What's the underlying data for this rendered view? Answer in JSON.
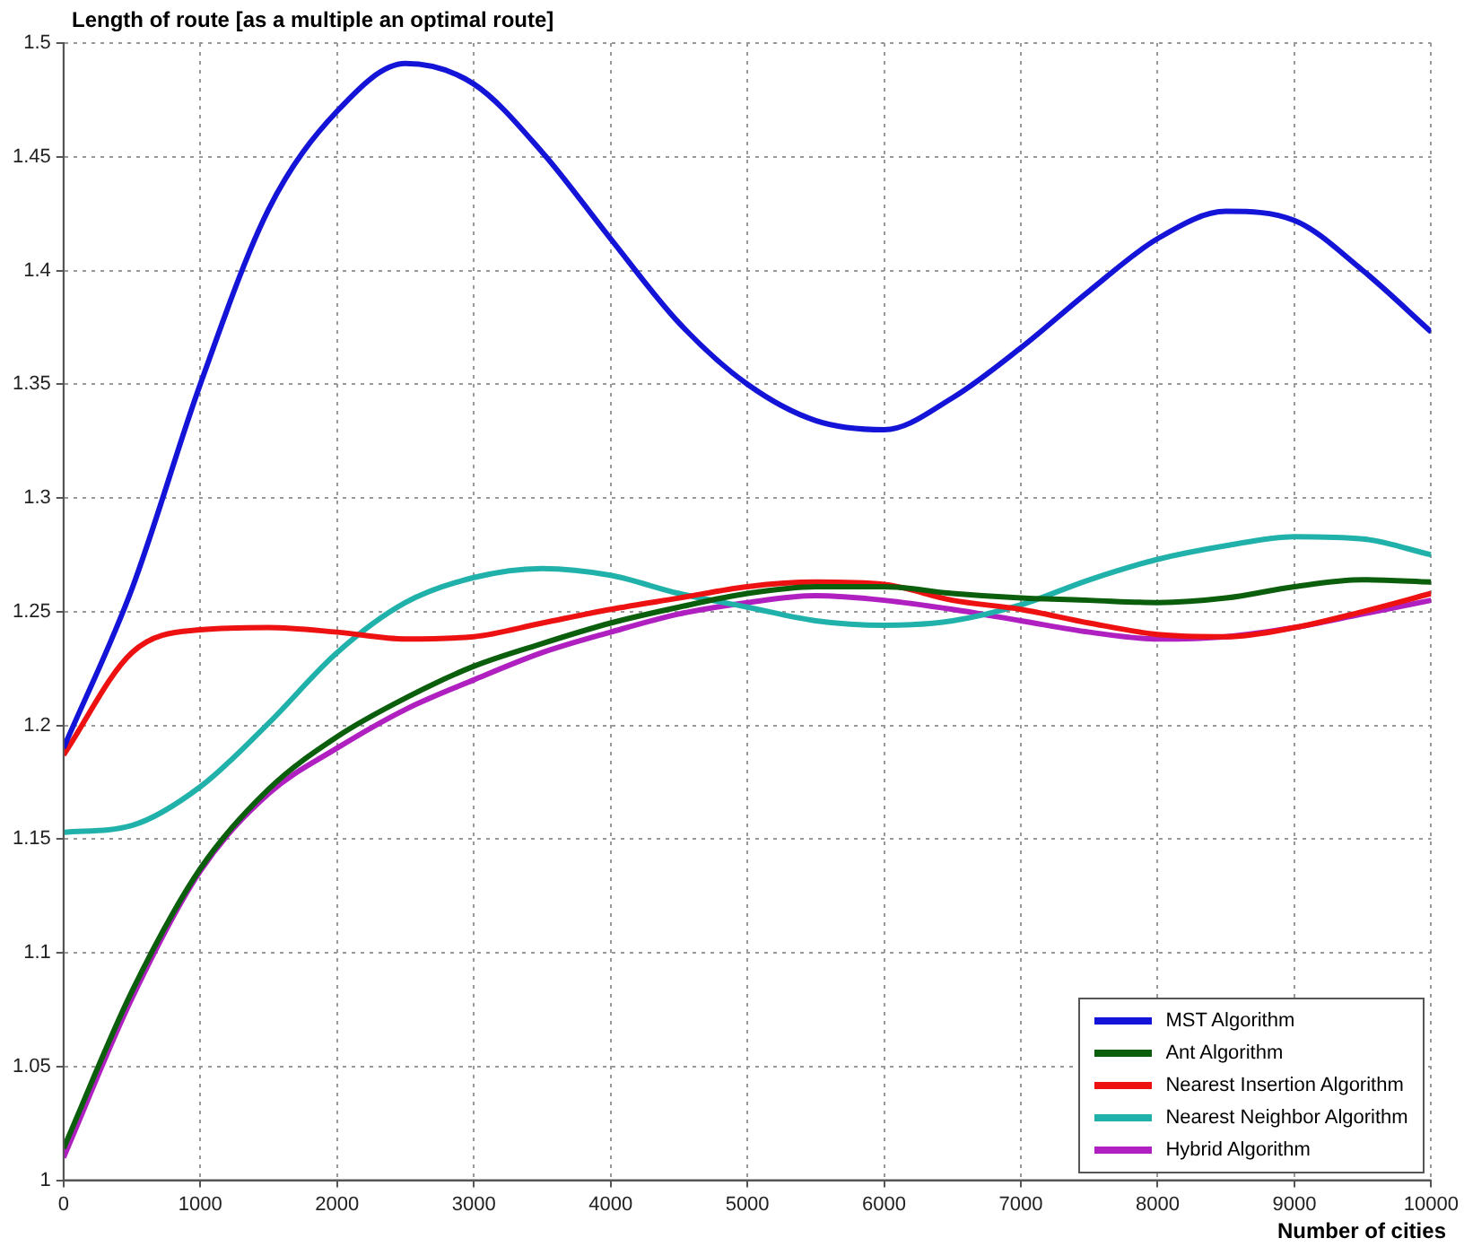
{
  "chart_data": {
    "type": "line",
    "ylabel": "Length of route [as a multiple an optimal route]",
    "xlabel": "Number of cities",
    "x": [
      0,
      500,
      1000,
      1500,
      2000,
      2500,
      3000,
      3500,
      4000,
      4500,
      5000,
      5500,
      6000,
      6500,
      7000,
      7500,
      8000,
      8500,
      9000,
      9500,
      10000
    ],
    "series": [
      {
        "name": "MST Algorithm",
        "color": "#1414d8",
        "values": [
          1.19,
          1.26,
          1.35,
          1.427,
          1.47,
          1.491,
          1.482,
          1.452,
          1.414,
          1.377,
          1.35,
          1.334,
          1.33,
          1.344,
          1.366,
          1.391,
          1.414,
          1.426,
          1.422,
          1.4,
          1.373
        ]
      },
      {
        "name": "Ant Algorithm",
        "color": "#0b5e0b",
        "values": [
          1.014,
          1.083,
          1.137,
          1.172,
          1.195,
          1.212,
          1.226,
          1.236,
          1.245,
          1.252,
          1.258,
          1.261,
          1.261,
          1.258,
          1.256,
          1.255,
          1.254,
          1.256,
          1.261,
          1.264,
          1.263
        ]
      },
      {
        "name": "Nearest Insertion Algorithm",
        "color": "#ee1111",
        "values": [
          1.187,
          1.232,
          1.242,
          1.243,
          1.241,
          1.238,
          1.239,
          1.245,
          1.251,
          1.256,
          1.261,
          1.263,
          1.262,
          1.255,
          1.251,
          1.245,
          1.24,
          1.239,
          1.243,
          1.25,
          1.258
        ]
      },
      {
        "name": "Nearest Neighbor Algorithm",
        "color": "#20b2aa",
        "values": [
          1.153,
          1.156,
          1.173,
          1.201,
          1.232,
          1.254,
          1.265,
          1.269,
          1.266,
          1.258,
          1.252,
          1.246,
          1.244,
          1.246,
          1.253,
          1.264,
          1.273,
          1.279,
          1.283,
          1.282,
          1.275
        ]
      },
      {
        "name": "Hybrid Algorithm",
        "color": "#b020c0",
        "values": [
          1.01,
          1.08,
          1.136,
          1.17,
          1.19,
          1.207,
          1.22,
          1.232,
          1.241,
          1.249,
          1.254,
          1.257,
          1.255,
          1.251,
          1.246,
          1.241,
          1.238,
          1.239,
          1.243,
          1.249,
          1.255
        ]
      }
    ],
    "xlim": [
      0,
      10000
    ],
    "xticks": [
      0,
      1000,
      2000,
      3000,
      4000,
      5000,
      6000,
      7000,
      8000,
      9000,
      10000
    ],
    "ylim": [
      1,
      1.5
    ],
    "yticks": [
      1,
      1.05,
      1.1,
      1.15,
      1.2,
      1.25,
      1.3,
      1.35,
      1.4,
      1.45,
      1.5
    ],
    "grid": true,
    "legend": "bottom right",
    "marker": "none",
    "line_style": "solid"
  }
}
